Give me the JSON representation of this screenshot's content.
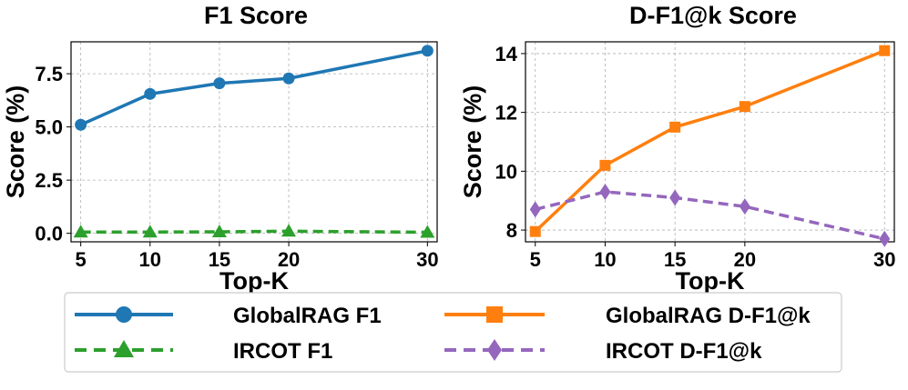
{
  "colors": {
    "globalrag_f1": "#1f77b4",
    "ircot_f1": "#2ca02c",
    "globalrag_df1": "#ff7f0e",
    "ircot_df1": "#9467bd"
  },
  "chart_data": [
    {
      "type": "line",
      "title": "F1 Score",
      "xlabel": "Top-K",
      "ylabel": "Score (%)",
      "x": [
        5,
        10,
        15,
        20,
        30
      ],
      "xlim": [
        4.3,
        30.7
      ],
      "ylim": [
        -0.4,
        9.0
      ],
      "xticks": [
        5,
        10,
        15,
        20,
        30
      ],
      "yticks": [
        0.0,
        2.5,
        5.0,
        7.5
      ],
      "ytick_labels": [
        "0.0",
        "2.5",
        "5.0",
        "7.5"
      ],
      "grid": true,
      "series": [
        {
          "name": "GlobalRAG F1",
          "values": [
            5.1,
            6.55,
            7.05,
            7.28,
            8.58
          ],
          "color": "#1f77b4",
          "line": "solid",
          "marker": "circle"
        },
        {
          "name": "IRCOT F1",
          "values": [
            0.06,
            0.06,
            0.07,
            0.1,
            0.05
          ],
          "color": "#2ca02c",
          "line": "dashed",
          "marker": "triangle"
        }
      ]
    },
    {
      "type": "line",
      "title": "D-F1@k Score",
      "xlabel": "Top-K",
      "ylabel": "Score (%)",
      "x": [
        5,
        10,
        15,
        20,
        30
      ],
      "xlim": [
        4.3,
        30.7
      ],
      "ylim": [
        7.6,
        14.4
      ],
      "xticks": [
        5,
        10,
        15,
        20,
        30
      ],
      "yticks": [
        8,
        10,
        12,
        14
      ],
      "ytick_labels": [
        "8",
        "10",
        "12",
        "14"
      ],
      "grid": true,
      "series": [
        {
          "name": "GlobalRAG D-F1@k",
          "values": [
            7.95,
            10.2,
            11.5,
            12.2,
            14.1
          ],
          "color": "#ff7f0e",
          "line": "solid",
          "marker": "square"
        },
        {
          "name": "IRCOT D-F1@k",
          "values": [
            8.7,
            9.3,
            9.1,
            8.8,
            7.7
          ],
          "color": "#9467bd",
          "line": "dashed",
          "marker": "diamond"
        }
      ]
    }
  ],
  "legend": {
    "placement": "bottom",
    "items": [
      {
        "label": "GlobalRAG F1",
        "color": "#1f77b4",
        "line": "solid",
        "marker": "circle"
      },
      {
        "label": "GlobalRAG D-F1@k",
        "color": "#ff7f0e",
        "line": "solid",
        "marker": "square"
      },
      {
        "label": "IRCOT F1",
        "color": "#2ca02c",
        "line": "dashed",
        "marker": "triangle"
      },
      {
        "label": "IRCOT D-F1@k",
        "color": "#9467bd",
        "line": "dashed",
        "marker": "diamond"
      }
    ]
  }
}
